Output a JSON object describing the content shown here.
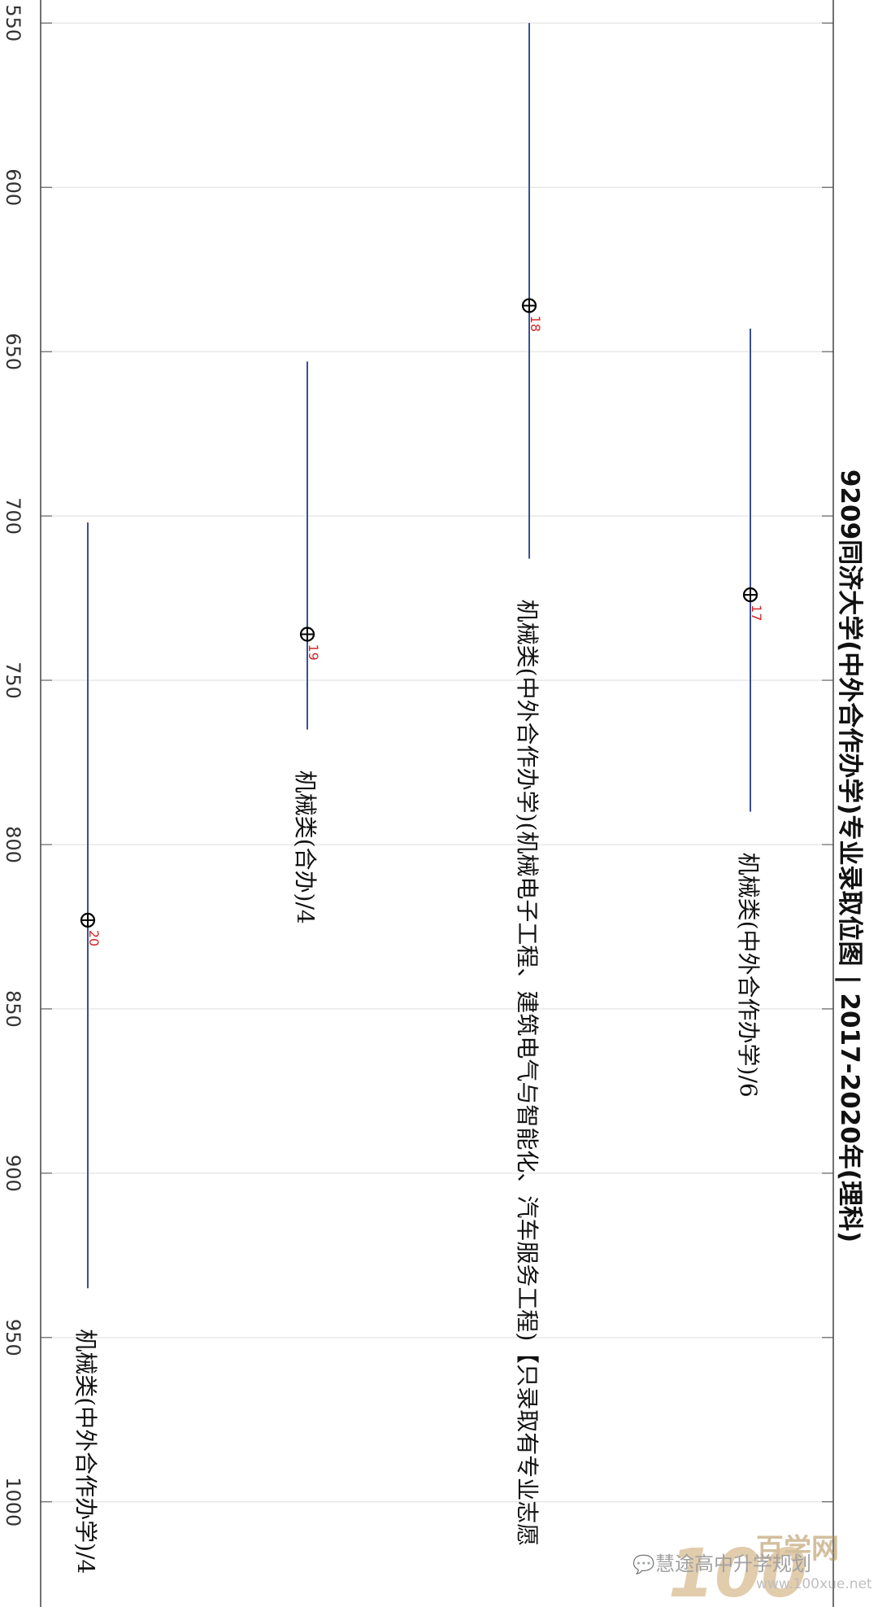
{
  "chart_data": {
    "type": "scatter",
    "title": "9209同济大学(中外合作办学)专业录取位图 | 2017-2020年(理科)",
    "ylim": [
      543,
      1032
    ],
    "yticks": [
      550,
      600,
      650,
      700,
      750,
      800,
      850,
      900,
      950,
      1000
    ],
    "grid": true,
    "series": [
      {
        "category": "机械类(中外合作办学)/4",
        "low": 702,
        "high": 935,
        "point": 823,
        "point_label": "20"
      },
      {
        "category": "机械类(合办)/4",
        "low": 653,
        "high": 765,
        "point": 736,
        "point_label": "19"
      },
      {
        "category": "机械类(中外合作办学)(机械电子工程、建筑电气与智能化、汽车服务工程)【只录取有专业志愿",
        "low": 550,
        "high": 713,
        "point": 636,
        "point_label": "18"
      },
      {
        "category": "机械类(中外合作办学)/6",
        "low": 643,
        "high": 790,
        "point": 724,
        "point_label": "17"
      }
    ]
  },
  "watermark": {
    "logo_number": "100",
    "logo_text": "百学网",
    "site": "www.100xue.net",
    "account": "慧途高中升学规划"
  }
}
